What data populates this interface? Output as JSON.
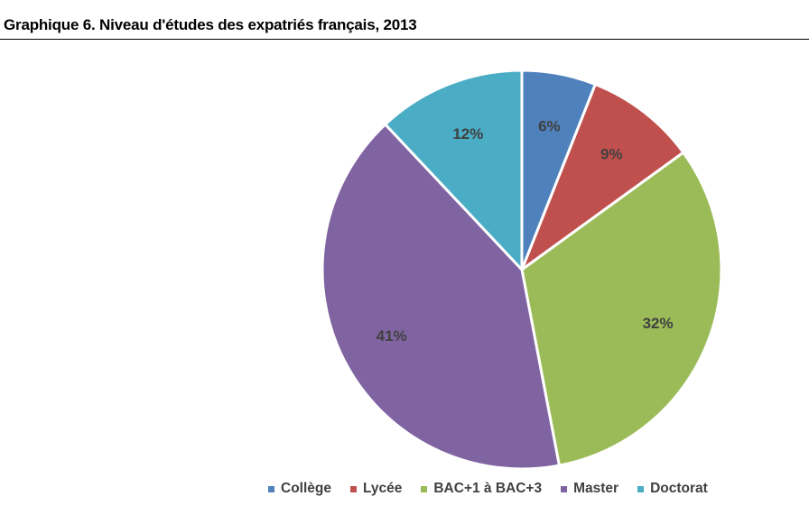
{
  "chart_data": {
    "type": "pie",
    "title": "Graphique 6. Niveau d'études des expatriés français, 2013",
    "categories": [
      "Collège",
      "Lycée",
      "BAC+1 à BAC+3",
      "Master",
      "Doctorat"
    ],
    "values": [
      6,
      9,
      32,
      41,
      12
    ],
    "labels": [
      "6%",
      "9%",
      "32%",
      "41%",
      "12%"
    ],
    "colors": [
      "#4F81BD",
      "#C0504D",
      "#9BBB59",
      "#8064A2",
      "#4BACC6"
    ],
    "legend_position": "bottom-right",
    "start_angle": "top",
    "direction": "clockwise"
  }
}
